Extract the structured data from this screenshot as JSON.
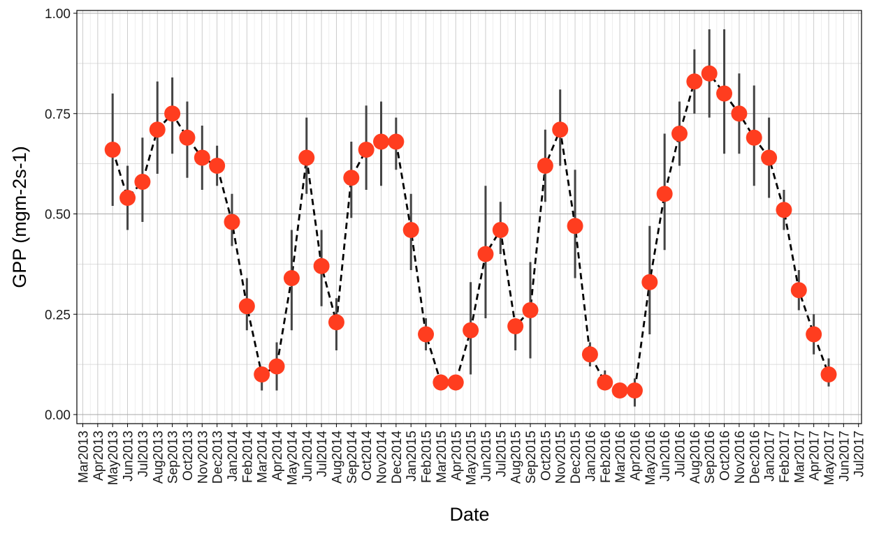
{
  "chart_data": {
    "type": "line",
    "xlabel": "Date",
    "ylabel": "GPP (mgm-2s-1)",
    "ylim": [
      0,
      1
    ],
    "y_ticks": [
      "0.00",
      "0.25",
      "0.50",
      "0.75",
      "1.00"
    ],
    "x_ticks": [
      "Mar2013",
      "Apr2013",
      "May2013",
      "Jun2013",
      "Jul2013",
      "Aug2013",
      "Sep2013",
      "Oct2013",
      "Nov2013",
      "Dec2013",
      "Jan2014",
      "Feb2014",
      "Mar2014",
      "Apr2014",
      "May2014",
      "Jun2014",
      "Jul2014",
      "Aug2014",
      "Sep2014",
      "Oct2014",
      "Nov2014",
      "Dec2014",
      "Jan2015",
      "Feb2015",
      "Mar2015",
      "Apr2015",
      "May2015",
      "Jun2015",
      "Jul2015",
      "Aug2015",
      "Sep2015",
      "Oct2015",
      "Nov2015",
      "Dec2015",
      "Jan2016",
      "Feb2016",
      "Mar2016",
      "Apr2016",
      "May2016",
      "Jun2016",
      "Jul2016",
      "Aug2016",
      "Sep2016",
      "Oct2016",
      "Nov2016",
      "Dec2016",
      "Jan2017",
      "Feb2017",
      "Mar2017",
      "Apr2017",
      "May2017",
      "Jun2017",
      "Jul2017"
    ],
    "grid": true,
    "line_style": "dashed",
    "colors": {
      "point": "#ff3d1f",
      "line": "#000000",
      "errorbar": "#444444",
      "grid": "#c8c8c8"
    },
    "series": [
      {
        "x": [
          "May2013",
          "Jun2013",
          "Jul2013",
          "Aug2013",
          "Sep2013",
          "Oct2013",
          "Nov2013",
          "Dec2013",
          "Jan2014",
          "Feb2014",
          "Mar2014",
          "Apr2014",
          "May2014",
          "Jun2014",
          "Jul2014",
          "Aug2014",
          "Sep2014",
          "Oct2014",
          "Nov2014",
          "Dec2014",
          "Jan2015",
          "Feb2015",
          "Mar2015",
          "Apr2015",
          "May2015",
          "Jun2015",
          "Jul2015",
          "Aug2015",
          "Sep2015",
          "Oct2015",
          "Nov2015",
          "Dec2015",
          "Jan2016",
          "Feb2016",
          "Mar2016",
          "Apr2016",
          "May2016",
          "Jun2016",
          "Jul2016",
          "Aug2016",
          "Sep2016",
          "Oct2016",
          "Nov2016",
          "Dec2016",
          "Jan2017",
          "Feb2017",
          "Mar2017",
          "Apr2017",
          "May2017"
        ],
        "values": [
          0.66,
          0.54,
          0.58,
          0.71,
          0.75,
          0.69,
          0.64,
          0.62,
          0.48,
          0.27,
          0.1,
          0.12,
          0.34,
          0.64,
          0.37,
          0.23,
          0.59,
          0.66,
          0.68,
          0.68,
          0.46,
          0.2,
          0.08,
          0.08,
          0.21,
          0.4,
          0.46,
          0.22,
          0.26,
          0.62,
          0.71,
          0.47,
          0.15,
          0.08,
          0.06,
          0.06,
          0.33,
          0.55,
          0.7,
          0.83,
          0.85,
          0.8,
          0.75,
          0.69,
          0.64,
          0.51,
          0.31,
          0.2,
          0.1
        ],
        "lower": [
          0.52,
          0.46,
          0.48,
          0.6,
          0.65,
          0.59,
          0.56,
          0.57,
          0.42,
          0.21,
          0.06,
          0.06,
          0.21,
          0.55,
          0.27,
          0.16,
          0.49,
          0.56,
          0.57,
          0.61,
          0.36,
          0.16,
          0.06,
          0.06,
          0.1,
          0.24,
          0.4,
          0.16,
          0.14,
          0.53,
          0.62,
          0.34,
          0.12,
          0.06,
          0.05,
          0.02,
          0.2,
          0.41,
          0.62,
          0.75,
          0.74,
          0.65,
          0.65,
          0.57,
          0.54,
          0.46,
          0.26,
          0.15,
          0.07
        ],
        "upper": [
          0.8,
          0.62,
          0.69,
          0.83,
          0.84,
          0.78,
          0.72,
          0.67,
          0.55,
          0.34,
          0.1,
          0.18,
          0.46,
          0.74,
          0.46,
          0.29,
          0.68,
          0.77,
          0.78,
          0.74,
          0.55,
          0.24,
          0.1,
          0.08,
          0.33,
          0.57,
          0.53,
          0.24,
          0.38,
          0.71,
          0.81,
          0.61,
          0.18,
          0.11,
          0.05,
          0.09,
          0.47,
          0.7,
          0.78,
          0.91,
          0.96,
          0.96,
          0.85,
          0.82,
          0.74,
          0.56,
          0.36,
          0.25,
          0.14
        ]
      }
    ]
  }
}
